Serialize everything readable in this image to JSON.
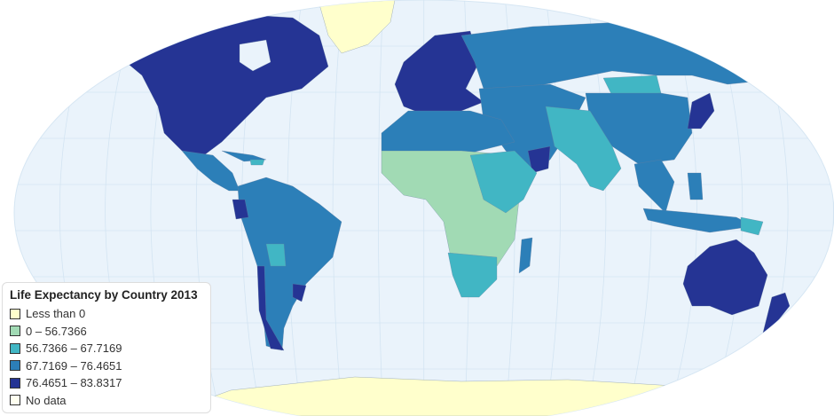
{
  "map": {
    "title": "Life Expectancy by Country 2013",
    "ocean_color": "#eaf3fb",
    "legend": [
      {
        "label": "Less than 0",
        "color": "#ffffcc"
      },
      {
        "label": "0 – 56.7366",
        "color": "#a1dab4"
      },
      {
        "label": "56.7366 – 67.7169",
        "color": "#41b6c4"
      },
      {
        "label": "67.7169 – 76.4651",
        "color": "#2c7fb8"
      },
      {
        "label": "76.4651 – 83.8317",
        "color": "#253494"
      },
      {
        "label": "No data",
        "color": "#fffff0"
      }
    ],
    "legend_placement": "bottom-left"
  }
}
